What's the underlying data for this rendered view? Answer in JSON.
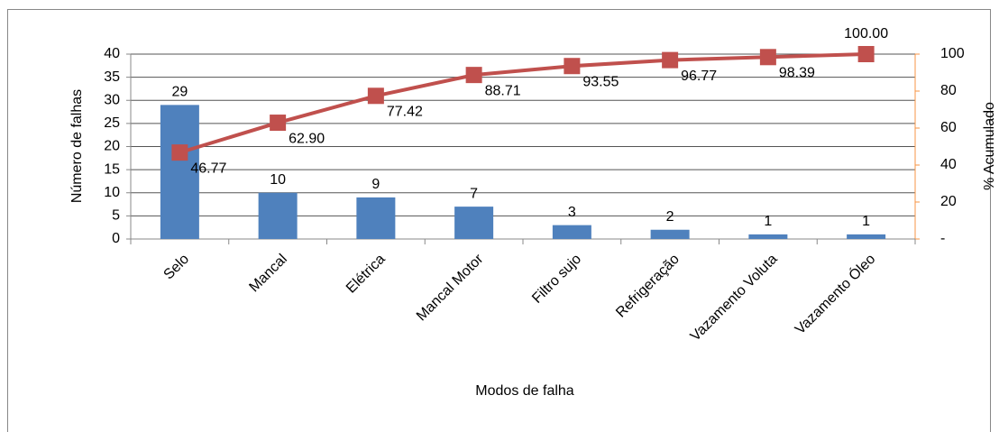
{
  "chart_data": {
    "type": "bar",
    "categories": [
      "Selo",
      "Mancal",
      "Elétrica",
      "Mancal Motor",
      "Filtro sujo",
      "Refrigeração",
      "Vazamento Voluta",
      "Vazamento Óleo"
    ],
    "series": [
      {
        "name": "Número de falhas",
        "type": "bar",
        "color": "#4f81bd",
        "values": [
          29,
          10,
          9,
          7,
          3,
          2,
          1,
          1
        ]
      },
      {
        "name": "% Acumulado",
        "type": "line",
        "axis": "y2",
        "color": "#c0504d",
        "values": [
          46.77,
          62.9,
          77.42,
          88.71,
          93.55,
          96.77,
          98.39,
          100
        ],
        "value_labels": [
          "46.77",
          "62.90",
          "77.42",
          "88.71",
          "93.55",
          "96.77",
          "98.39",
          "100.00"
        ]
      }
    ],
    "x_label": "Modos de falha",
    "y_label": "Número de falhas",
    "y2_label": "% Acumulado",
    "ylim": [
      0,
      40
    ],
    "yticks": [
      0,
      5,
      10,
      15,
      20,
      25,
      30,
      35,
      40
    ],
    "y2lim": [
      0,
      100
    ],
    "y2ticks": [
      {
        "value": 0,
        "label": "-"
      },
      20,
      40,
      60,
      80,
      100
    ],
    "grid": true
  }
}
